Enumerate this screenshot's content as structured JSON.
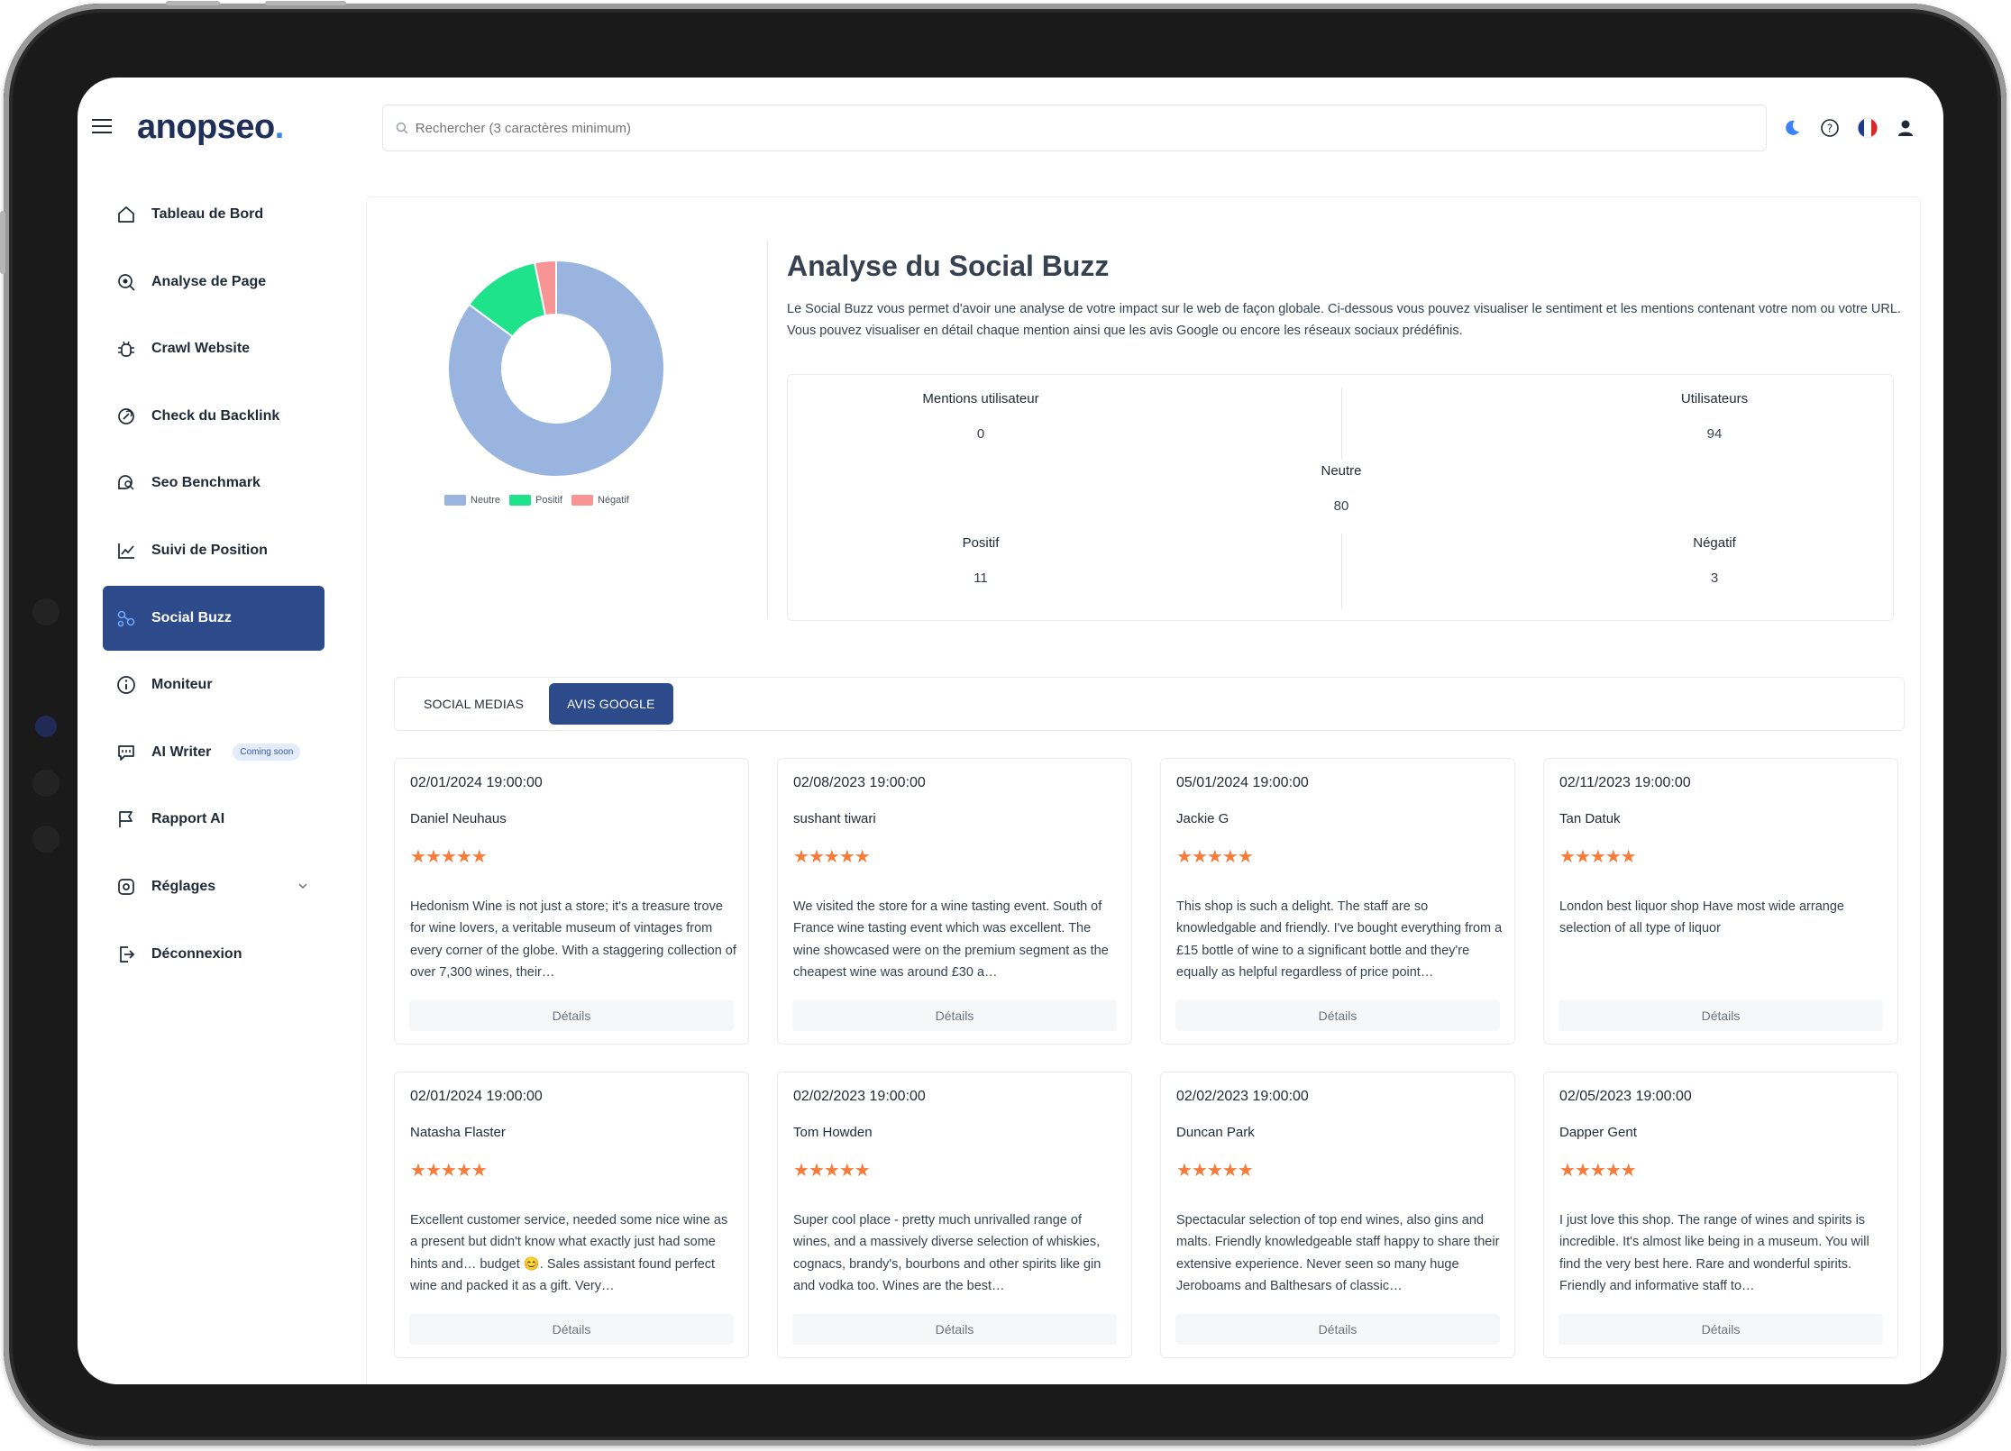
{
  "app": {
    "logo": "anopseo",
    "search_placeholder": "Rechercher (3 caractères minimum)"
  },
  "sidebar": {
    "items": [
      {
        "label": "Tableau de Bord",
        "icon": "home-icon"
      },
      {
        "label": "Analyse de Page",
        "icon": "page-analysis-icon"
      },
      {
        "label": "Crawl Website",
        "icon": "bug-icon"
      },
      {
        "label": "Check du Backlink",
        "icon": "link-icon"
      },
      {
        "label": "Seo Benchmark",
        "icon": "search-chat-icon"
      },
      {
        "label": "Suivi de Position",
        "icon": "line-chart-icon"
      },
      {
        "label": "Social Buzz",
        "icon": "nodes-icon"
      },
      {
        "label": "Moniteur",
        "icon": "info-icon"
      },
      {
        "label": "AI Writer",
        "icon": "chat-icon",
        "badge": "Coming soon"
      },
      {
        "label": "Rapport AI",
        "icon": "flag-icon"
      },
      {
        "label": "Réglages",
        "icon": "gear-icon"
      },
      {
        "label": "Déconnexion",
        "icon": "logout-icon"
      }
    ]
  },
  "overview": {
    "title": "Analyse du Social Buzz",
    "description": "Le Social Buzz vous permet d'avoir une analyse de votre impact sur le web de façon globale. Ci-dessous vous pouvez visualiser le sentiment et les mentions contenant votre nom ou votre URL. Vous pouvez visualiser en détail chaque mention ainsi que les avis Google ou encore les réseaux sociaux prédéfinis.",
    "stats": {
      "mentions_label": "Mentions utilisateur",
      "mentions_value": "0",
      "users_label": "Utilisateurs",
      "users_value": "94",
      "neutral_label": "Neutre",
      "neutral_value": "80",
      "positive_label": "Positif",
      "positive_value": "11",
      "negative_label": "Négatif",
      "negative_value": "3"
    }
  },
  "chart_data": {
    "type": "pie",
    "categories": [
      "Neutre",
      "Positif",
      "Négatif"
    ],
    "values": [
      80,
      11,
      3
    ],
    "colors": [
      "#98b4df",
      "#1ee38a",
      "#f79594"
    ],
    "legend_position": "bottom"
  },
  "tabs": {
    "social_medias": "SOCIAL MEDIAS",
    "avis_google": "AVIS GOOGLE"
  },
  "reviews": [
    {
      "date": "02/01/2024 19:00:00",
      "name": "Daniel Neuhaus",
      "rating": 5,
      "text": "Hedonism Wine is not just a store; it's a treasure trove for wine lovers, a veritable museum of vintages from every corner of the globe. With a staggering collection of over 7,300 wines, their…",
      "button": "Détails"
    },
    {
      "date": "02/08/2023 19:00:00",
      "name": "sushant tiwari",
      "rating": 5,
      "text": "We visited the store for a wine tasting event. South of France wine tasting event which was excellent. The wine showcased were on the premium segment as the cheapest wine was around £30 a…",
      "button": "Détails"
    },
    {
      "date": "05/01/2024 19:00:00",
      "name": "Jackie G",
      "rating": 5,
      "text": "This shop is such a delight. The staff are so knowledgable and friendly. I've bought everything from a £15 bottle of wine to a significant bottle and they're equally as helpful regardless of price point…",
      "button": "Détails"
    },
    {
      "date": "02/11/2023 19:00:00",
      "name": "Tan Datuk",
      "rating": 5,
      "text": "London best liquor shop Have most wide arrange selection of all type of liquor",
      "button": "Détails"
    },
    {
      "date": "02/01/2024 19:00:00",
      "name": "Natasha Flaster",
      "rating": 5,
      "text": "Excellent customer service, needed some nice wine as a present but didn't know what exactly just had some hints and… budget 😊. Sales assistant found perfect wine and packed it as a gift. Very…",
      "button": "Détails"
    },
    {
      "date": "02/02/2023 19:00:00",
      "name": "Tom Howden",
      "rating": 5,
      "text": "Super cool place - pretty much unrivalled range of wines, and a massively diverse selection of whiskies, cognacs, brandy's, bourbons and other spirits like gin and vodka too. Wines are the best…",
      "button": "Détails"
    },
    {
      "date": "02/02/2023 19:00:00",
      "name": "Duncan Park",
      "rating": 5,
      "text": "Spectacular selection of top end wines, also gins and malts. Friendly knowledgeable staff happy to share their extensive experience. Never seen so many huge Jeroboams and Balthesars of classic…",
      "button": "Détails"
    },
    {
      "date": "02/05/2023 19:00:00",
      "name": "Dapper Gent",
      "rating": 5,
      "text": "I just love this shop. The range of wines and spirits is incredible. It's almost like being in a museum. You will find the very best here. Rare and wonderful spirits. Friendly and informative staff to…",
      "button": "Détails"
    }
  ]
}
